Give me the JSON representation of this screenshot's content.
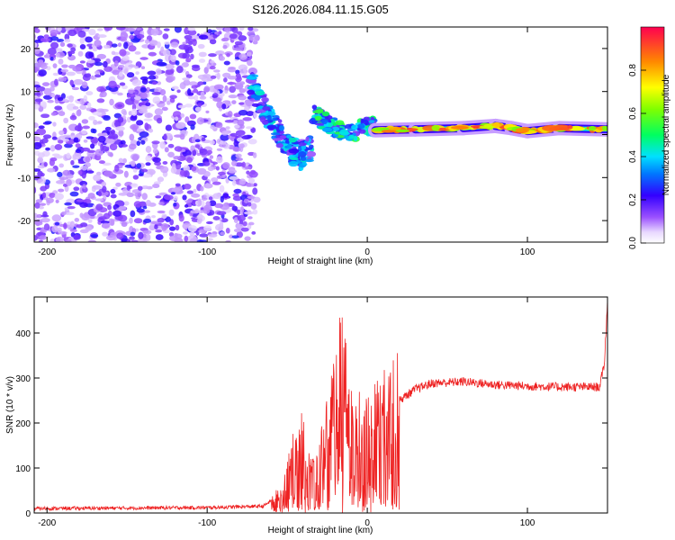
{
  "chart_data": [
    {
      "type": "heatmap",
      "title": "S126.2026.084.11.15.G05",
      "xlabel": "Height of straight line (km)",
      "ylabel": "Frequency (Hz)",
      "xlim": [
        -208,
        150
      ],
      "ylim": [
        -25,
        25
      ],
      "xticks": [
        -200,
        -100,
        0,
        100
      ],
      "yticks": [
        20,
        10,
        0,
        -10,
        -20
      ],
      "colorbar": {
        "label": "Normalized spectral amplitude",
        "range": [
          0.0,
          1.0
        ],
        "ticks": [
          0.0,
          0.2,
          0.4,
          0.6,
          0.8
        ],
        "tick_labels": [
          "0.0",
          "0.2",
          "0.4",
          "0.6",
          "0.8"
        ]
      },
      "features": {
        "noise_region_x": [
          -208,
          -70
        ],
        "dispersive_track": [
          [
            -73,
            12
          ],
          [
            -70,
            10
          ],
          [
            -66,
            7
          ],
          [
            -62,
            4
          ],
          [
            -58,
            2
          ],
          [
            -54,
            0
          ],
          [
            -50,
            -2
          ],
          [
            -46,
            -4
          ],
          [
            -42,
            -5
          ],
          [
            -38,
            -4
          ],
          [
            -34,
            -3
          ]
        ],
        "transition_track": [
          [
            -34,
            5
          ],
          [
            -30,
            4
          ],
          [
            -26,
            3
          ],
          [
            -22,
            2
          ],
          [
            -18,
            1
          ],
          [
            -14,
            0
          ],
          [
            -10,
            0.5
          ],
          [
            -5,
            1
          ],
          [
            0,
            2
          ],
          [
            5,
            2
          ]
        ],
        "carrier_band": [
          [
            5,
            1
          ],
          [
            30,
            1.2
          ],
          [
            60,
            1.5
          ],
          [
            80,
            2.0
          ],
          [
            90,
            1.5
          ],
          [
            100,
            0.8
          ],
          [
            120,
            1.5
          ],
          [
            150,
            1.2
          ]
        ]
      }
    },
    {
      "type": "line",
      "title": "",
      "xlabel": "Height of straight line (km)",
      "ylabel": "SNR (10 * v/v)",
      "xlim": [
        -208,
        150
      ],
      "ylim": [
        0,
        480
      ],
      "xticks": [
        -200,
        -100,
        0,
        100
      ],
      "yticks": [
        0,
        100,
        200,
        300,
        400
      ],
      "series": [
        {
          "name": "SNR",
          "color": "#ee2222",
          "envelope": [
            [
              -208,
              10
            ],
            [
              -100,
              12
            ],
            [
              -65,
              15
            ],
            [
              -55,
              40
            ],
            [
              -48,
              100
            ],
            [
              -42,
              180
            ],
            [
              -38,
              120
            ],
            [
              -32,
              80
            ],
            [
              -28,
              150
            ],
            [
              -22,
              220
            ],
            [
              -18,
              270
            ],
            [
              -16,
              360
            ],
            [
              -12,
              220
            ],
            [
              -5,
              200
            ],
            [
              0,
              190
            ],
            [
              10,
              220
            ],
            [
              20,
              250
            ],
            [
              30,
              275
            ],
            [
              40,
              288
            ],
            [
              60,
              292
            ],
            [
              80,
              285
            ],
            [
              100,
              282
            ],
            [
              120,
              280
            ],
            [
              145,
              280
            ],
            [
              148,
              330
            ],
            [
              150,
              470
            ]
          ]
        }
      ]
    }
  ]
}
